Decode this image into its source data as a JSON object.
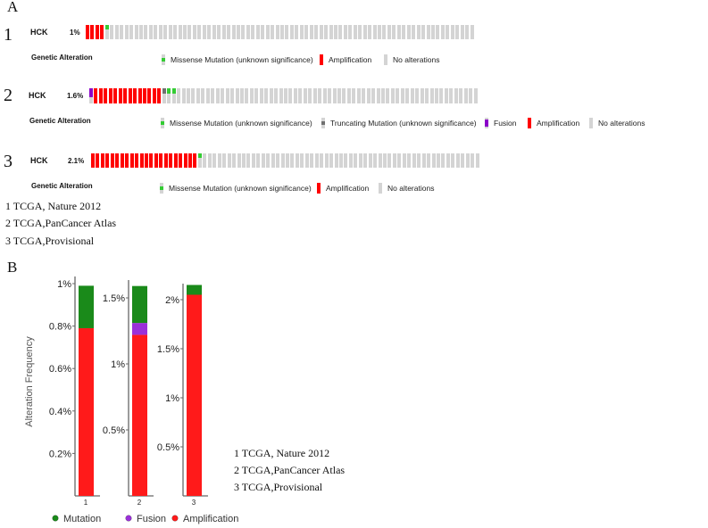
{
  "panel_a": {
    "label": "A",
    "rows": [
      {
        "index": "1",
        "gene": "HCK",
        "percent": "1%",
        "cells": [
          {
            "type": "amplification",
            "count": 4
          },
          {
            "type": "missense",
            "count": 1
          },
          {
            "type": "none",
            "count": 75
          }
        ]
      },
      {
        "index": "2",
        "gene": "HCK",
        "percent": "1.6%",
        "cells": [
          {
            "type": "fusion",
            "count": 1
          },
          {
            "type": "amplification",
            "count": 14
          },
          {
            "type": "truncating",
            "count": 1
          },
          {
            "type": "missense",
            "count": 2
          },
          {
            "type": "none",
            "count": 62
          }
        ]
      },
      {
        "index": "3",
        "gene": "HCK",
        "percent": "2.1%",
        "cells": [
          {
            "type": "amplification",
            "count": 22
          },
          {
            "type": "missense",
            "count": 1
          },
          {
            "type": "none",
            "count": 57
          }
        ]
      }
    ],
    "legend_title": "Genetic Alteration",
    "legends": [
      [
        {
          "type": "missense",
          "label": "Missense Mutation (unknown significance)"
        },
        {
          "type": "amplification",
          "label": "Amplification"
        },
        {
          "type": "none",
          "label": "No alterations"
        }
      ],
      [
        {
          "type": "missense",
          "label": "Missense Mutation (unknown significance)"
        },
        {
          "type": "truncating",
          "label": "Truncating Mutation (unknown significance)"
        },
        {
          "type": "fusion",
          "label": "Fusion"
        },
        {
          "type": "amplification",
          "label": "Amplification"
        },
        {
          "type": "none",
          "label": "No alterations"
        }
      ],
      [
        {
          "type": "missense",
          "label": "Missense Mutation (unknown significance)"
        },
        {
          "type": "amplification",
          "label": "Amplification"
        },
        {
          "type": "none",
          "label": "No alterations"
        }
      ]
    ],
    "studies": [
      "1   TCGA, Nature 2012",
      "2   TCGA,PanCancer Atlas",
      "3   TCGA,Provisional"
    ]
  },
  "colors": {
    "amplification": "#ff0000",
    "missense": "#33cc33",
    "truncating": "#707070",
    "fusion": "#8b00c9",
    "none": "#d4d4d4",
    "mutation": "#1a8a1a",
    "fusion_bar": "#9b30d9",
    "amp_bar": "#ff1a1a"
  },
  "panel_b": {
    "label": "B",
    "studies": [
      "1   TCGA, Nature 2012",
      "2   TCGA,PanCancer Atlas",
      "3   TCGA,Provisional"
    ]
  },
  "chart_data": {
    "type": "bar",
    "stacked": true,
    "ylabel": "Alteration Frequency",
    "categories": [
      "1",
      "2",
      "3"
    ],
    "series": [
      {
        "name": "Amplification",
        "values": [
          0.79,
          1.22,
          2.05
        ]
      },
      {
        "name": "Fusion",
        "values": [
          0,
          0.09,
          0
        ]
      },
      {
        "name": "Mutation",
        "values": [
          0.2,
          0.28,
          0.1
        ]
      }
    ],
    "panels": [
      {
        "category": "1",
        "ylim": [
          0,
          1.0
        ],
        "ticks": [
          "0.2%",
          "0.4%",
          "0.6%",
          "0.8%",
          "1%"
        ],
        "tick_values": [
          0.2,
          0.4,
          0.6,
          0.8,
          1.0
        ]
      },
      {
        "category": "2",
        "ylim": [
          0,
          1.6
        ],
        "ticks": [
          "0.5%",
          "1%",
          "1.5%"
        ],
        "tick_values": [
          0.5,
          1.0,
          1.5
        ]
      },
      {
        "category": "3",
        "ylim": [
          0,
          2.15
        ],
        "ticks": [
          "0.5%",
          "1%",
          "1.5%",
          "2%"
        ],
        "tick_values": [
          0.5,
          1.0,
          1.5,
          2.0
        ]
      }
    ],
    "legend": [
      "Mutation",
      "Fusion",
      "Amplification"
    ],
    "legend_position": "bottom"
  }
}
